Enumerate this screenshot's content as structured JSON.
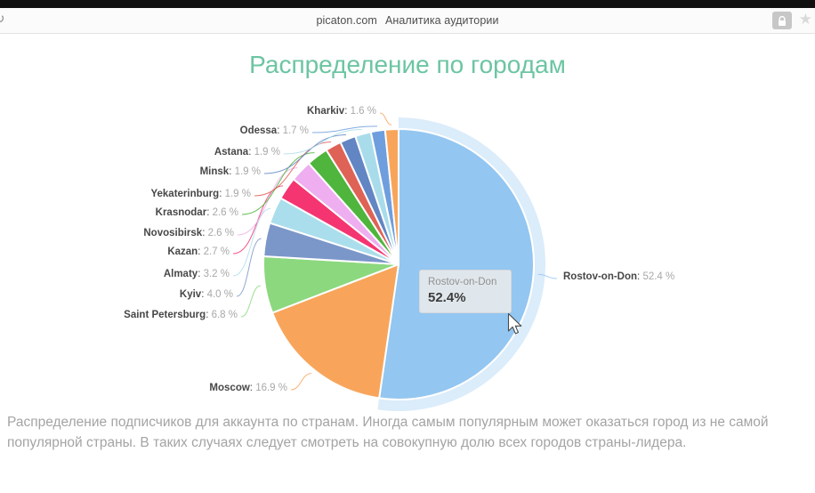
{
  "browser": {
    "host": "picaton.com",
    "page_title": "Аналитика аудитории",
    "icons": [
      "refresh-icon",
      "lock-icon",
      "bookmark-star-icon"
    ],
    "star_glyph": "★",
    "refresh_glyph": "↻"
  },
  "chart_data": {
    "type": "pie",
    "title": "Распределение по городам",
    "title_color": "#6cc5a2",
    "unit": "%",
    "legend": "none",
    "start_angle_deg": 0,
    "direction": "clockwise",
    "highlighted": "Rostov-on-Don",
    "slices": [
      {
        "name": "Rostov-on-Don",
        "value": 52.4,
        "label": "52.4 %",
        "color": "#93c6f0"
      },
      {
        "name": "Moscow",
        "value": 16.9,
        "label": "16.9 %",
        "color": "#f8a55b"
      },
      {
        "name": "Saint Petersburg",
        "value": 6.8,
        "label": "6.8 %",
        "color": "#8cd87e"
      },
      {
        "name": "Kyiv",
        "value": 4.0,
        "label": "4.0 %",
        "color": "#7b97c9"
      },
      {
        "name": "Almaty",
        "value": 3.2,
        "label": "3.2 %",
        "color": "#abdeec"
      },
      {
        "name": "Kazan",
        "value": 2.7,
        "label": "2.7 %",
        "color": "#f43571"
      },
      {
        "name": "Novosibirsk",
        "value": 2.6,
        "label": "2.6 %",
        "color": "#eeaef0"
      },
      {
        "name": "Krasnodar",
        "value": 2.6,
        "label": "2.6 %",
        "color": "#4fb53c"
      },
      {
        "name": "Yekaterinburg",
        "value": 1.9,
        "label": "1.9 %",
        "color": "#df6257"
      },
      {
        "name": "Minsk",
        "value": 1.9,
        "label": "1.9 %",
        "color": "#6285c4"
      },
      {
        "name": "Astana",
        "value": 1.9,
        "label": "1.9 %",
        "color": "#a9dcea"
      },
      {
        "name": "Odessa",
        "value": 1.7,
        "label": "1.7 %",
        "color": "#6f9ede"
      },
      {
        "name": "Kharkiv",
        "value": 1.6,
        "label": "1.6 %",
        "color": "#f8a55b"
      }
    ]
  },
  "tooltip": {
    "name": "Rostov-on-Don",
    "value": "52.4%"
  },
  "description": "Распределение подписчиков для аккаунта по странам. Иногда самым популярным может оказаться город из не самой популярной страны. В таких случаях следует смотреть на совокупную долю всех городов страны-лидера."
}
